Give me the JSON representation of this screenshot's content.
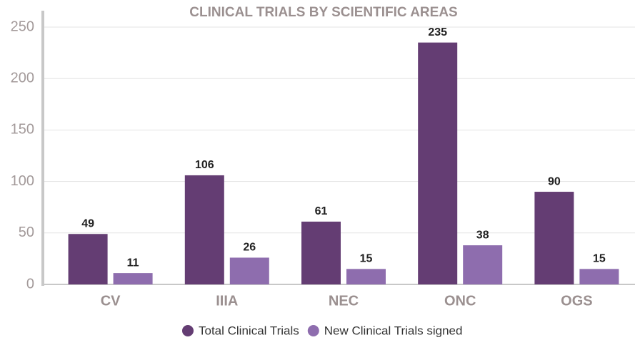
{
  "chart_data": {
    "type": "bar",
    "title": "CLINICAL TRIALS BY SCIENTIFIC AREAS",
    "categories": [
      "CV",
      "IIIA",
      "NEC",
      "ONC",
      "OGS"
    ],
    "series": [
      {
        "name": "Total Clinical Trials",
        "color": "#643d73",
        "values": [
          49,
          106,
          61,
          235,
          90
        ]
      },
      {
        "name": "New Clinical Trials signed",
        "color": "#8e6dae",
        "values": [
          11,
          26,
          15,
          38,
          15
        ]
      }
    ],
    "ylim": [
      0,
      250
    ],
    "yticks": [
      0,
      50,
      100,
      150,
      200,
      250
    ],
    "grid": true,
    "legend": "bottom"
  }
}
